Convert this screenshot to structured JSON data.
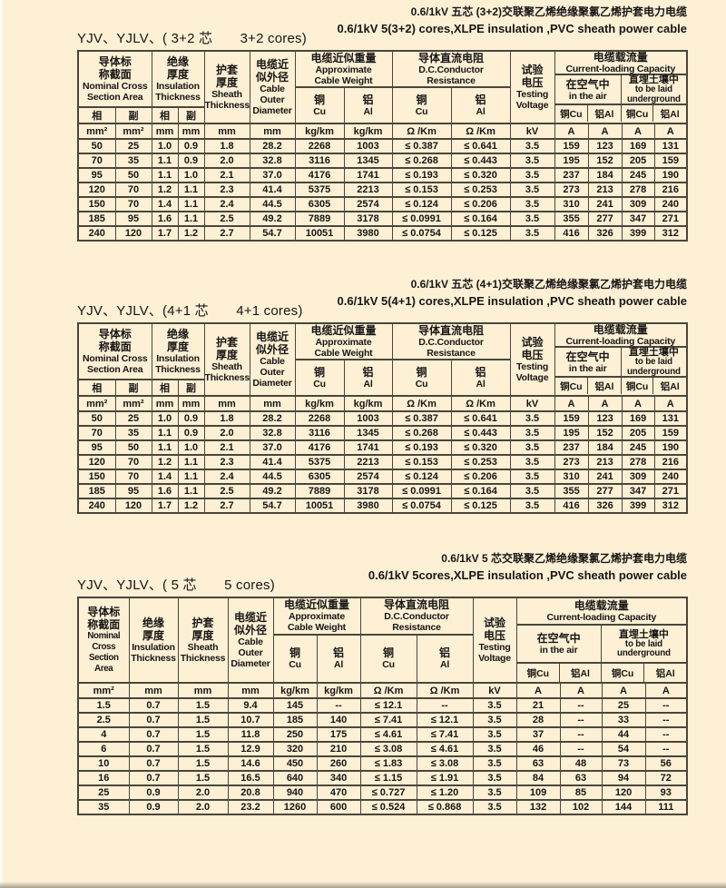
{
  "page": {
    "background": "#fdf0d4",
    "border_color": "#4a463c",
    "text_color": "#161616"
  },
  "header": {
    "nominal": {
      "cn": "导体标\n称截面",
      "en": "Nominal Cross\nSection Area"
    },
    "nominal5": {
      "cn": "导体标\n称截面",
      "en": "Nominal\nCross\nSection Area"
    },
    "phase": "相",
    "aux": "副",
    "insulation": {
      "cn": "绝缘\n厚度",
      "en": "Insulation\nThickness"
    },
    "sheath": {
      "cn": "护套\n厚度",
      "en": "Sheath\nThickness"
    },
    "diameter": {
      "cn": "电缆近\n似外径",
      "en": "Cable\nOuter\nDiameter"
    },
    "weight": {
      "cn": "电缆近似重量",
      "en": "Approximate\nCable Weight"
    },
    "resistance": {
      "cn": "导体直流电阻",
      "en": "D.C.Conductor\nResistance"
    },
    "voltage": {
      "cn": "试验\n电压",
      "en": "Testing\nVoltage"
    },
    "load": {
      "cn": "电缆载流量",
      "en": "Current-loading Capacity"
    },
    "air": {
      "cn": "在空气中",
      "en": "in the air"
    },
    "underground": {
      "cn": "直埋土壤中",
      "en": "to be laid\nunderground"
    },
    "cu": {
      "cn": "铜",
      "en": "Cu"
    },
    "al": {
      "cn": "铝",
      "en": "Al"
    },
    "cu_short": "铜Cu",
    "al_short": "铝Al",
    "units": {
      "mm2": "mm²",
      "mm": "mm",
      "kgkm": "kg/km",
      "ohmkm": "Ω /Km",
      "kv": "kV",
      "a": "A"
    }
  },
  "sections": [
    {
      "label": "YJV、YJLV、( 3+2 芯　　3+2 cores)",
      "title_cn": "0.6/1kV 五芯 (3+2)交联聚乙烯绝缘聚氯乙烯护套电力电缆",
      "title_en": "0.6/1kV 5(3+2) cores,XLPE insulation ,PVC sheath power cable",
      "rows": [
        [
          "50",
          "25",
          "1.0",
          "0.9",
          "1.8",
          "28.2",
          "2268",
          "1003",
          "≤ 0.387",
          "≤ 0.641",
          "3.5",
          "159",
          "123",
          "169",
          "131"
        ],
        [
          "70",
          "35",
          "1.1",
          "0.9",
          "2.0",
          "32.8",
          "3116",
          "1345",
          "≤ 0.268",
          "≤ 0.443",
          "3.5",
          "195",
          "152",
          "205",
          "159"
        ],
        [
          "95",
          "50",
          "1.1",
          "1.0",
          "2.1",
          "37.0",
          "4176",
          "1741",
          "≤ 0.193",
          "≤ 0.320",
          "3.5",
          "237",
          "184",
          "245",
          "190"
        ],
        [
          "120",
          "70",
          "1.2",
          "1.1",
          "2.3",
          "41.4",
          "5375",
          "2213",
          "≤ 0.153",
          "≤ 0.253",
          "3.5",
          "273",
          "213",
          "278",
          "216"
        ],
        [
          "150",
          "70",
          "1.4",
          "1.1",
          "2.4",
          "44.5",
          "6305",
          "2574",
          "≤ 0.124",
          "≤ 0.206",
          "3.5",
          "310",
          "241",
          "309",
          "240"
        ],
        [
          "185",
          "95",
          "1.6",
          "1.1",
          "2.5",
          "49.2",
          "7889",
          "3178",
          "≤ 0.0991",
          "≤ 0.164",
          "3.5",
          "355",
          "277",
          "347",
          "271"
        ],
        [
          "240",
          "120",
          "1.7",
          "1.2",
          "2.7",
          "54.7",
          "10051",
          "3980",
          "≤ 0.0754",
          "≤ 0.125",
          "3.5",
          "416",
          "326",
          "399",
          "312"
        ]
      ]
    },
    {
      "label": "YJV、YJLV、(4+1 芯　　4+1 cores)",
      "title_cn": "0.6/1kV 五芯 (4+1)交联聚乙烯绝缘聚氯乙烯护套电力电缆",
      "title_en": "0.6/1kV 5(4+1) cores,XLPE insulation ,PVC sheath power cable",
      "rows": [
        [
          "50",
          "25",
          "1.0",
          "0.9",
          "1.8",
          "28.2",
          "2268",
          "1003",
          "≤ 0.387",
          "≤ 0.641",
          "3.5",
          "159",
          "123",
          "169",
          "131"
        ],
        [
          "70",
          "35",
          "1.1",
          "0.9",
          "2.0",
          "32.8",
          "3116",
          "1345",
          "≤ 0.268",
          "≤ 0.443",
          "3.5",
          "195",
          "152",
          "205",
          "159"
        ],
        [
          "95",
          "50",
          "1.1",
          "1.0",
          "2.1",
          "37.0",
          "4176",
          "1741",
          "≤ 0.193",
          "≤ 0.320",
          "3.5",
          "237",
          "184",
          "245",
          "190"
        ],
        [
          "120",
          "70",
          "1.2",
          "1.1",
          "2.3",
          "41.4",
          "5375",
          "2213",
          "≤ 0.153",
          "≤ 0.253",
          "3.5",
          "273",
          "213",
          "278",
          "216"
        ],
        [
          "150",
          "70",
          "1.4",
          "1.1",
          "2.4",
          "44.5",
          "6305",
          "2574",
          "≤ 0.124",
          "≤ 0.206",
          "3.5",
          "310",
          "241",
          "309",
          "240"
        ],
        [
          "185",
          "95",
          "1.6",
          "1.1",
          "2.5",
          "49.2",
          "7889",
          "3178",
          "≤ 0.0991",
          "≤ 0.164",
          "3.5",
          "355",
          "277",
          "347",
          "271"
        ],
        [
          "240",
          "120",
          "1.7",
          "1.2",
          "2.7",
          "54.7",
          "10051",
          "3980",
          "≤ 0.0754",
          "≤ 0.125",
          "3.5",
          "416",
          "326",
          "399",
          "312"
        ]
      ]
    },
    {
      "label": "YJV、YJLV、( 5 芯　　5 cores)",
      "title_cn": "0.6/1kV 5 芯交联聚乙烯绝缘聚氯乙烯护套电力电缆",
      "title_en": "0.6/1kV 5cores,XLPE insulation ,PVC sheath power cable",
      "rows": [
        [
          "1.5",
          "0.7",
          "1.5",
          "9.4",
          "145",
          "--",
          "≤ 12.1",
          "--",
          "3.5",
          "21",
          "--",
          "25",
          "--"
        ],
        [
          "2.5",
          "0.7",
          "1.5",
          "10.7",
          "185",
          "140",
          "≤ 7.41",
          "≤ 12.1",
          "3.5",
          "28",
          "--",
          "33",
          "--"
        ],
        [
          "4",
          "0.7",
          "1.5",
          "11.8",
          "250",
          "175",
          "≤ 4.61",
          "≤ 7.41",
          "3.5",
          "37",
          "--",
          "44",
          "--"
        ],
        [
          "6",
          "0.7",
          "1.5",
          "12.9",
          "320",
          "210",
          "≤ 3.08",
          "≤ 4.61",
          "3.5",
          "46",
          "--",
          "54",
          "--"
        ],
        [
          "10",
          "0.7",
          "1.5",
          "14.6",
          "450",
          "260",
          "≤ 1.83",
          "≤ 3.08",
          "3.5",
          "63",
          "48",
          "73",
          "56"
        ],
        [
          "16",
          "0.7",
          "1.5",
          "16.5",
          "640",
          "340",
          "≤ 1.15",
          "≤ 1.91",
          "3.5",
          "84",
          "63",
          "94",
          "72"
        ],
        [
          "25",
          "0.9",
          "2.0",
          "20.8",
          "940",
          "470",
          "≤ 0.727",
          "≤ 1.20",
          "3.5",
          "109",
          "85",
          "120",
          "93"
        ],
        [
          "35",
          "0.9",
          "2.0",
          "23.2",
          "1260",
          "600",
          "≤ 0.524",
          "≤ 0.868",
          "3.5",
          "132",
          "102",
          "144",
          "111"
        ]
      ]
    }
  ]
}
